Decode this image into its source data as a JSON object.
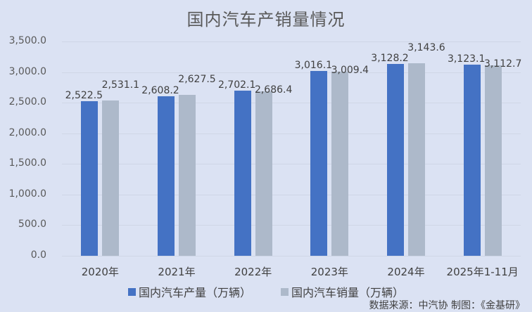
{
  "chart_data": {
    "type": "bar",
    "title": "国内汽车产销量情况",
    "categories": [
      "2020年",
      "2021年",
      "2022年",
      "2023年",
      "2024年",
      "2025年1-11月"
    ],
    "series": [
      {
        "name": "国内汽车产量（万辆）",
        "color": "#4472c4",
        "values": [
          2522.5,
          2608.2,
          2702.1,
          3016.1,
          3128.2,
          3123.1
        ],
        "labels": [
          "2,522.5",
          "2,608.2",
          "2,702.1",
          "3,016.1",
          "3,128.2",
          "3,123.1"
        ]
      },
      {
        "name": "国内汽车销量（万辆）",
        "color": "#adb9ca",
        "values": [
          2531.1,
          2627.5,
          2686.4,
          3009.4,
          3143.6,
          3112.7
        ],
        "labels": [
          "2,531.1",
          "2,627.5",
          "2,686.4",
          "3,009.4",
          "3,143.6",
          "3,112.7"
        ]
      }
    ],
    "xlabel": "",
    "ylabel": "",
    "ylim": [
      0,
      3500
    ],
    "yticks": [
      "0.0",
      "500.0",
      "1,000.0",
      "1,500.0",
      "2,000.0",
      "2,500.0",
      "3,000.0",
      "3,500.0"
    ],
    "grid": true,
    "legend_position": "bottom"
  },
  "footer": {
    "source": "数据来源：中汽协   制图：《金基研》"
  }
}
